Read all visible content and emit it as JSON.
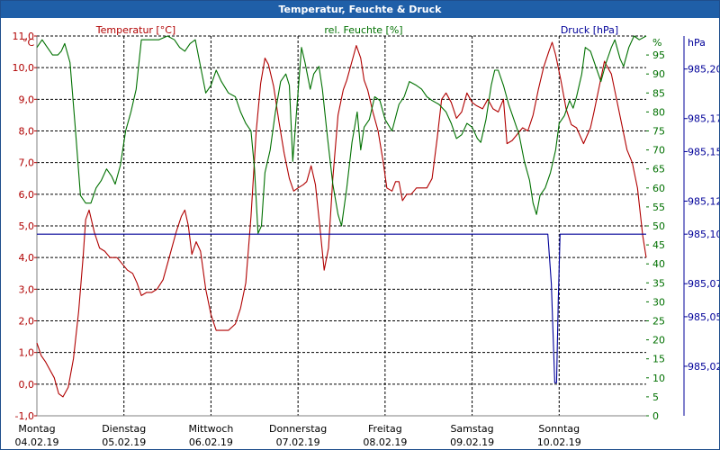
{
  "window": {
    "title": "Temperatur, Feuchte & Druck"
  },
  "colors": {
    "temperature": "#b00000",
    "humidity": "#007000",
    "pressure": "#000099",
    "grid": "#000000",
    "title_bar": "#1f5fa8"
  },
  "chart_data": {
    "type": "line",
    "title": "Temperatur, Feuchte & Druck",
    "grid": true,
    "x_unit": "day",
    "x_range": [
      0,
      7
    ],
    "x_ticks": [
      {
        "day": "Montag",
        "date": "04.02.19"
      },
      {
        "day": "Dienstag",
        "date": "05.02.19"
      },
      {
        "day": "Mittwoch",
        "date": "06.02.19"
      },
      {
        "day": "Donnerstag",
        "date": "07.02.19"
      },
      {
        "day": "Freitag",
        "date": "08.02.19"
      },
      {
        "day": "Samstag",
        "date": "09.02.19"
      },
      {
        "day": "Sonntag",
        "date": "10.02.19"
      }
    ],
    "axes": {
      "temperature": {
        "label": "Temperatur [°C]",
        "unit": "°C",
        "range": [
          -1.0,
          11.0
        ],
        "ticks": [
          "11,0",
          "10,0",
          "9,0",
          "8,0",
          "7,0",
          "6,0",
          "5,0",
          "4,0",
          "3,0",
          "2,0",
          "1,0",
          "0,0",
          "-1,0"
        ]
      },
      "humidity": {
        "label": "rel. Feuchte [%]",
        "unit": "%",
        "range": [
          0,
          100
        ],
        "ticks": [
          "95",
          "90",
          "85",
          "80",
          "75",
          "70",
          "65",
          "60",
          "55",
          "50",
          "45",
          "40",
          "35",
          "30",
          "25",
          "20",
          "15",
          "10",
          "5",
          "0"
        ]
      },
      "pressure": {
        "label": "Druck [hPa]",
        "unit": "hPa",
        "range": [
          984.99,
          985.22
        ],
        "ticks": [
          "985,20",
          "985,17",
          "985,15",
          "985,12",
          "985,10",
          "985,07",
          "985,05",
          "985,02"
        ]
      }
    },
    "series": [
      {
        "name": "Temperatur [°C]",
        "axis": "temperature",
        "points": [
          [
            0.0,
            1.3
          ],
          [
            0.05,
            0.9
          ],
          [
            0.1,
            0.7
          ],
          [
            0.14,
            0.5
          ],
          [
            0.2,
            0.2
          ],
          [
            0.25,
            -0.3
          ],
          [
            0.3,
            -0.4
          ],
          [
            0.36,
            -0.1
          ],
          [
            0.42,
            0.8
          ],
          [
            0.48,
            2.3
          ],
          [
            0.53,
            4.0
          ],
          [
            0.56,
            5.2
          ],
          [
            0.6,
            5.5
          ],
          [
            0.66,
            4.8
          ],
          [
            0.72,
            4.3
          ],
          [
            0.78,
            4.2
          ],
          [
            0.84,
            4.0
          ],
          [
            0.92,
            4.0
          ],
          [
            0.98,
            3.8
          ],
          [
            1.04,
            3.6
          ],
          [
            1.1,
            3.5
          ],
          [
            1.15,
            3.2
          ],
          [
            1.2,
            2.8
          ],
          [
            1.26,
            2.9
          ],
          [
            1.32,
            2.9
          ],
          [
            1.38,
            3.0
          ],
          [
            1.45,
            3.3
          ],
          [
            1.52,
            4.0
          ],
          [
            1.6,
            4.8
          ],
          [
            1.66,
            5.3
          ],
          [
            1.7,
            5.5
          ],
          [
            1.74,
            5.0
          ],
          [
            1.78,
            4.1
          ],
          [
            1.83,
            4.5
          ],
          [
            1.88,
            4.2
          ],
          [
            1.94,
            3.0
          ],
          [
            2.0,
            2.2
          ],
          [
            2.06,
            1.7
          ],
          [
            2.12,
            1.7
          ],
          [
            2.2,
            1.7
          ],
          [
            2.28,
            1.9
          ],
          [
            2.34,
            2.4
          ],
          [
            2.4,
            3.2
          ],
          [
            2.46,
            5.3
          ],
          [
            2.52,
            8.0
          ],
          [
            2.57,
            9.5
          ],
          [
            2.62,
            10.3
          ],
          [
            2.66,
            10.1
          ],
          [
            2.72,
            9.4
          ],
          [
            2.78,
            8.3
          ],
          [
            2.84,
            7.3
          ],
          [
            2.9,
            6.5
          ],
          [
            2.95,
            6.1
          ],
          [
            3.0,
            6.2
          ],
          [
            3.06,
            6.3
          ],
          [
            3.1,
            6.4
          ],
          [
            3.15,
            6.9
          ],
          [
            3.2,
            6.3
          ],
          [
            3.25,
            5.0
          ],
          [
            3.3,
            3.6
          ],
          [
            3.35,
            4.3
          ],
          [
            3.4,
            6.5
          ],
          [
            3.46,
            8.5
          ],
          [
            3.52,
            9.3
          ],
          [
            3.56,
            9.6
          ],
          [
            3.62,
            10.2
          ],
          [
            3.67,
            10.7
          ],
          [
            3.72,
            10.3
          ],
          [
            3.76,
            9.6
          ],
          [
            3.8,
            9.3
          ],
          [
            3.86,
            8.6
          ],
          [
            3.92,
            8.0
          ],
          [
            3.98,
            7.0
          ],
          [
            4.02,
            6.2
          ],
          [
            4.08,
            6.1
          ],
          [
            4.12,
            6.4
          ],
          [
            4.16,
            6.4
          ],
          [
            4.2,
            5.8
          ],
          [
            4.25,
            6.0
          ],
          [
            4.3,
            6.0
          ],
          [
            4.36,
            6.2
          ],
          [
            4.42,
            6.2
          ],
          [
            4.48,
            6.2
          ],
          [
            4.54,
            6.5
          ],
          [
            4.6,
            7.8
          ],
          [
            4.65,
            9.0
          ],
          [
            4.7,
            9.2
          ],
          [
            4.76,
            8.9
          ],
          [
            4.82,
            8.4
          ],
          [
            4.88,
            8.6
          ],
          [
            4.94,
            9.2
          ],
          [
            5.0,
            8.9
          ],
          [
            5.05,
            8.8
          ],
          [
            5.12,
            8.7
          ],
          [
            5.18,
            9.0
          ],
          [
            5.24,
            8.7
          ],
          [
            5.3,
            8.6
          ],
          [
            5.36,
            9.0
          ],
          [
            5.4,
            7.6
          ],
          [
            5.46,
            7.7
          ],
          [
            5.52,
            7.9
          ],
          [
            5.58,
            8.1
          ],
          [
            5.64,
            8.0
          ],
          [
            5.7,
            8.5
          ],
          [
            5.76,
            9.3
          ],
          [
            5.82,
            10.0
          ],
          [
            5.88,
            10.5
          ],
          [
            5.92,
            10.8
          ],
          [
            5.96,
            10.4
          ],
          [
            6.02,
            9.6
          ],
          [
            6.08,
            8.7
          ],
          [
            6.14,
            8.2
          ],
          [
            6.2,
            8.1
          ],
          [
            6.28,
            7.6
          ],
          [
            6.36,
            8.1
          ],
          [
            6.4,
            8.6
          ],
          [
            6.46,
            9.4
          ],
          [
            6.52,
            10.2
          ],
          [
            6.56,
            10.0
          ],
          [
            6.6,
            9.8
          ],
          [
            6.66,
            9.0
          ],
          [
            6.72,
            8.2
          ],
          [
            6.78,
            7.4
          ],
          [
            6.84,
            7.0
          ],
          [
            6.9,
            6.2
          ],
          [
            6.96,
            4.7
          ],
          [
            7.0,
            4.0
          ]
        ]
      },
      {
        "name": "rel. Feuchte [%]",
        "axis": "humidity",
        "points": [
          [
            0.0,
            97
          ],
          [
            0.06,
            99
          ],
          [
            0.12,
            97
          ],
          [
            0.18,
            95
          ],
          [
            0.24,
            95
          ],
          [
            0.28,
            96
          ],
          [
            0.32,
            98
          ],
          [
            0.38,
            93
          ],
          [
            0.44,
            76
          ],
          [
            0.5,
            58
          ],
          [
            0.56,
            56
          ],
          [
            0.62,
            56
          ],
          [
            0.68,
            60
          ],
          [
            0.74,
            62
          ],
          [
            0.8,
            65
          ],
          [
            0.86,
            63
          ],
          [
            0.9,
            61
          ],
          [
            0.96,
            66
          ],
          [
            1.02,
            75
          ],
          [
            1.08,
            80
          ],
          [
            1.14,
            86
          ],
          [
            1.2,
            99
          ],
          [
            1.3,
            99
          ],
          [
            1.4,
            99
          ],
          [
            1.5,
            100
          ],
          [
            1.58,
            99
          ],
          [
            1.64,
            97
          ],
          [
            1.7,
            96
          ],
          [
            1.76,
            98
          ],
          [
            1.82,
            99
          ],
          [
            1.88,
            92
          ],
          [
            1.94,
            85
          ],
          [
            2.0,
            87
          ],
          [
            2.06,
            91
          ],
          [
            2.12,
            88
          ],
          [
            2.2,
            85
          ],
          [
            2.28,
            84
          ],
          [
            2.34,
            80
          ],
          [
            2.4,
            77
          ],
          [
            2.46,
            75
          ],
          [
            2.5,
            65
          ],
          [
            2.54,
            48
          ],
          [
            2.58,
            50
          ],
          [
            2.62,
            64
          ],
          [
            2.68,
            70
          ],
          [
            2.74,
            80
          ],
          [
            2.8,
            88
          ],
          [
            2.86,
            90
          ],
          [
            2.9,
            87
          ],
          [
            2.94,
            67
          ],
          [
            3.0,
            85
          ],
          [
            3.04,
            97
          ],
          [
            3.08,
            93
          ],
          [
            3.14,
            86
          ],
          [
            3.18,
            90
          ],
          [
            3.24,
            92
          ],
          [
            3.28,
            86
          ],
          [
            3.34,
            73
          ],
          [
            3.4,
            61
          ],
          [
            3.46,
            53
          ],
          [
            3.5,
            50
          ],
          [
            3.56,
            60
          ],
          [
            3.62,
            72
          ],
          [
            3.68,
            80
          ],
          [
            3.72,
            70
          ],
          [
            3.76,
            76
          ],
          [
            3.82,
            78
          ],
          [
            3.88,
            84
          ],
          [
            3.94,
            83
          ],
          [
            4.0,
            78
          ],
          [
            4.08,
            75
          ],
          [
            4.16,
            82
          ],
          [
            4.22,
            84
          ],
          [
            4.28,
            88
          ],
          [
            4.36,
            87
          ],
          [
            4.42,
            86
          ],
          [
            4.48,
            84
          ],
          [
            4.54,
            83
          ],
          [
            4.62,
            82
          ],
          [
            4.7,
            80
          ],
          [
            4.76,
            77
          ],
          [
            4.82,
            73
          ],
          [
            4.88,
            74
          ],
          [
            4.94,
            77
          ],
          [
            5.0,
            76
          ],
          [
            5.06,
            73
          ],
          [
            5.1,
            72
          ],
          [
            5.16,
            78
          ],
          [
            5.22,
            87
          ],
          [
            5.26,
            91
          ],
          [
            5.3,
            91
          ],
          [
            5.36,
            87
          ],
          [
            5.42,
            82
          ],
          [
            5.48,
            78
          ],
          [
            5.54,
            74
          ],
          [
            5.6,
            67
          ],
          [
            5.66,
            62
          ],
          [
            5.7,
            56
          ],
          [
            5.74,
            53
          ],
          [
            5.78,
            58
          ],
          [
            5.84,
            60
          ],
          [
            5.9,
            64
          ],
          [
            5.96,
            70
          ],
          [
            6.0,
            77
          ],
          [
            6.06,
            79
          ],
          [
            6.12,
            83
          ],
          [
            6.16,
            81
          ],
          [
            6.2,
            84
          ],
          [
            6.26,
            90
          ],
          [
            6.3,
            97
          ],
          [
            6.36,
            96
          ],
          [
            6.42,
            92
          ],
          [
            6.48,
            88
          ],
          [
            6.54,
            93
          ],
          [
            6.6,
            97
          ],
          [
            6.64,
            99
          ],
          [
            6.7,
            94
          ],
          [
            6.74,
            92
          ],
          [
            6.8,
            97
          ],
          [
            6.86,
            100
          ],
          [
            6.92,
            99
          ],
          [
            7.0,
            100
          ]
        ]
      },
      {
        "name": "Druck [hPa]",
        "axis": "pressure",
        "points": [
          [
            0.0,
            985.1
          ],
          [
            5.87,
            985.1
          ],
          [
            5.91,
            985.07
          ],
          [
            5.95,
            985.01
          ],
          [
            5.97,
            985.01
          ],
          [
            5.99,
            985.06
          ],
          [
            6.01,
            985.1
          ],
          [
            7.0,
            985.1
          ]
        ]
      }
    ]
  }
}
